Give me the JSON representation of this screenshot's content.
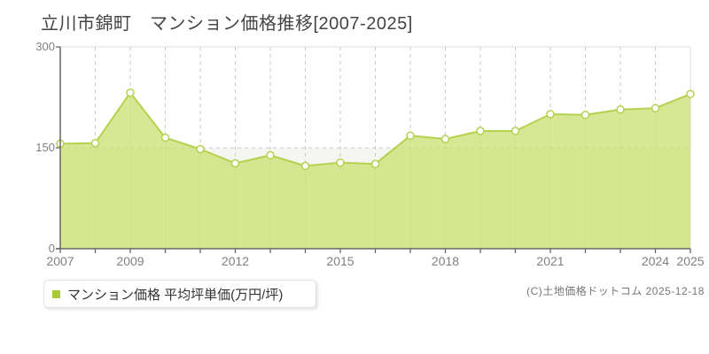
{
  "title": "立川市錦町　マンション価格推移[2007-2025]",
  "legend": {
    "label": "マンション価格 平均坪単価(万円/坪)",
    "marker_color": "#a9c938"
  },
  "copyright": "(C)土地価格ドットコム 2025-12-18",
  "chart_data": {
    "type": "area",
    "title": "立川市錦町 マンション価格推移 [2007-2025]",
    "series_name": "マンション価格 平均坪単価(万円/坪)",
    "x": [
      2007,
      2008,
      2009,
      2010,
      2011,
      2012,
      2013,
      2014,
      2015,
      2016,
      2017,
      2018,
      2019,
      2020,
      2021,
      2022,
      2023,
      2024,
      2025
    ],
    "values": [
      156,
      157,
      232,
      165,
      148,
      127,
      139,
      123,
      128,
      126,
      168,
      163,
      175,
      175,
      200,
      199,
      207,
      209,
      230
    ],
    "ylabel": "平均坪単価(万円/坪)",
    "ylim": [
      0,
      300
    ],
    "y_ticks": [
      0,
      150,
      300
    ],
    "x_tick_labels": [
      "2007",
      "2009",
      "2012",
      "2015",
      "2018",
      "2021",
      "2024",
      "2025"
    ],
    "x_tick_indices": [
      0,
      2,
      5,
      8,
      11,
      14,
      17,
      18
    ],
    "grid": "dashed vertical line per year, dashed horizontal line at 150",
    "legend_position": "bottom-left",
    "colors": {
      "line": "#b4d24e",
      "area_fill": "#cce074",
      "marker_fill": "#ffffff",
      "band_lower": "#f5f5f2",
      "band_upper": "#ffffff",
      "grid": "#c9c9c9",
      "axis": "#666666",
      "border": "#dddddd",
      "tick_label": "#808080",
      "title_text": "#444444"
    }
  }
}
